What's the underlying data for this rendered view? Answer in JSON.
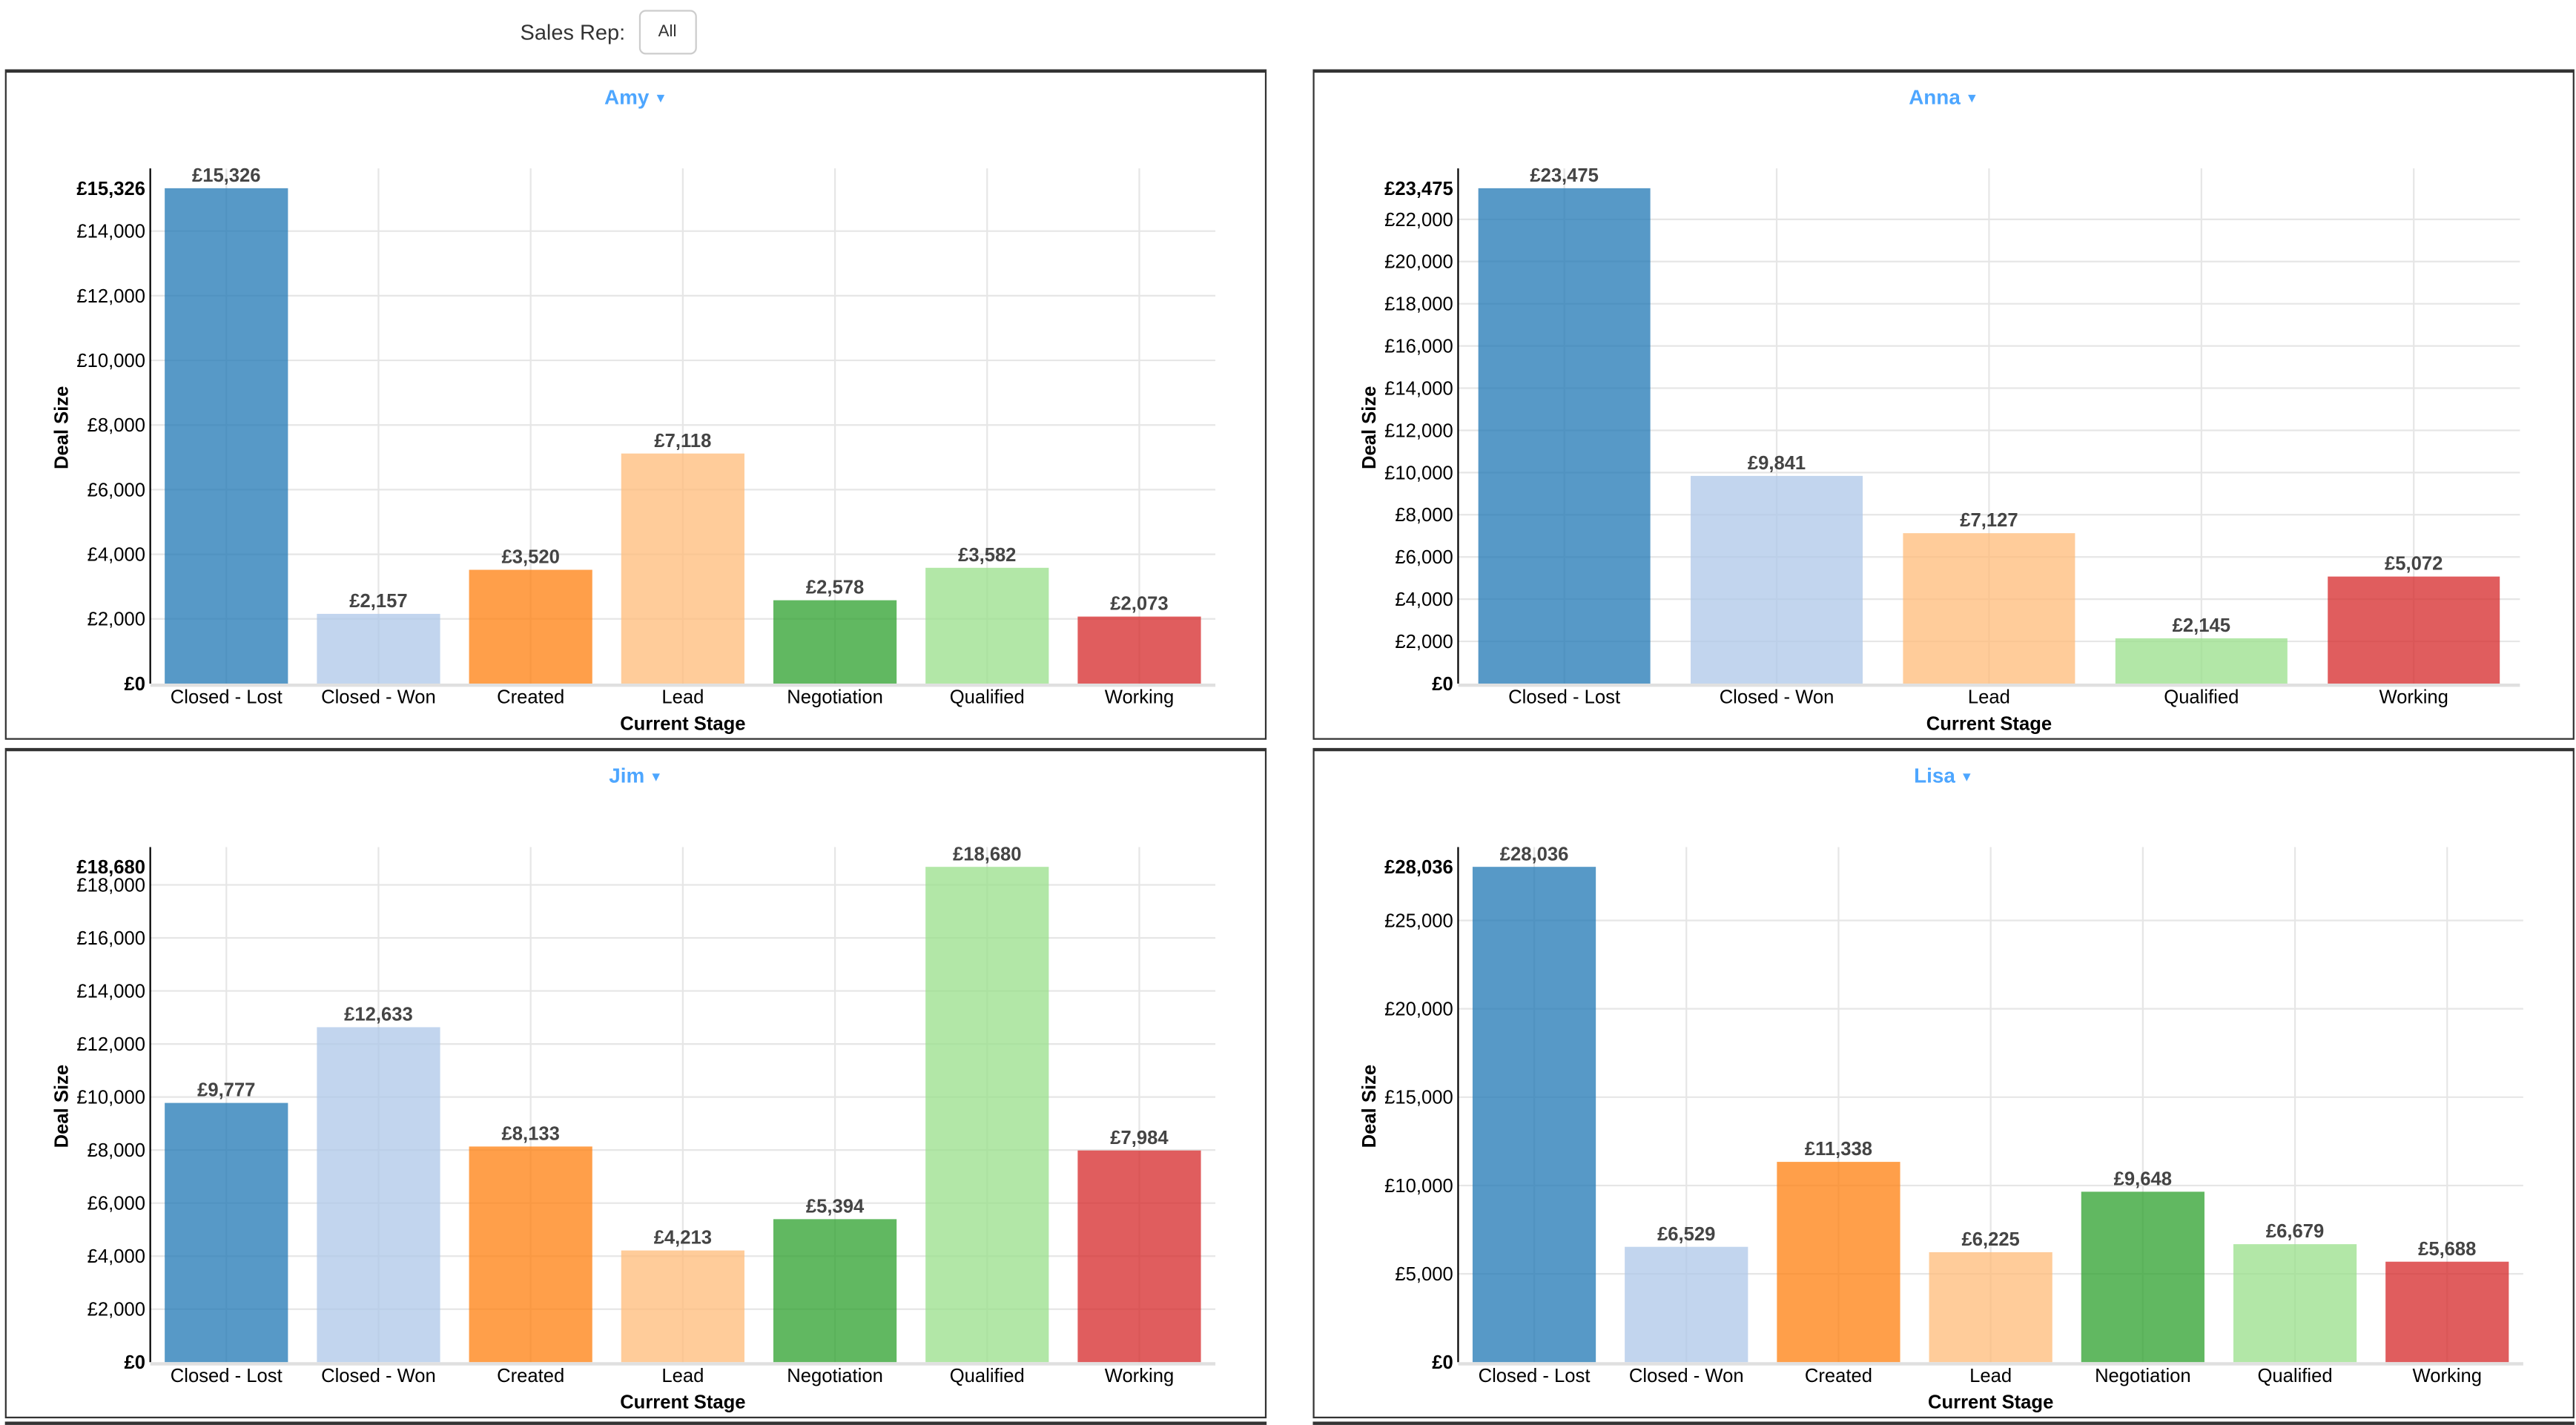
{
  "filter": {
    "label": "Sales Rep:",
    "value": "All"
  },
  "chart_data": [
    {
      "type": "bar",
      "title": "Amy",
      "xlabel": "Current Stage",
      "ylabel": "Deal Size",
      "currency": "£",
      "tick_step": 2000,
      "ylim": [
        0,
        15326
      ],
      "grid": true,
      "categories": [
        "Closed - Lost",
        "Closed - Won",
        "Created",
        "Lead",
        "Negotiation",
        "Qualified",
        "Working"
      ],
      "values": [
        15326,
        2157,
        3520,
        7118,
        2578,
        3582,
        2073
      ]
    },
    {
      "type": "bar",
      "title": "Anna",
      "xlabel": "Current Stage",
      "ylabel": "Deal Size",
      "currency": "£",
      "tick_step": 2000,
      "ylim": [
        0,
        23475
      ],
      "grid": true,
      "categories": [
        "Closed - Lost",
        "Closed - Won",
        "Lead",
        "Qualified",
        "Working"
      ],
      "values": [
        23475,
        9841,
        7127,
        2145,
        5072
      ]
    },
    {
      "type": "bar",
      "title": "Jim",
      "xlabel": "Current Stage",
      "ylabel": "Deal Size",
      "currency": "£",
      "tick_step": 2000,
      "ylim": [
        0,
        18680
      ],
      "grid": true,
      "categories": [
        "Closed - Lost",
        "Closed - Won",
        "Created",
        "Lead",
        "Negotiation",
        "Qualified",
        "Working"
      ],
      "values": [
        9777,
        12633,
        8133,
        4213,
        5394,
        18680,
        7984
      ]
    },
    {
      "type": "bar",
      "title": "Lisa",
      "xlabel": "Current Stage",
      "ylabel": "Deal Size",
      "currency": "£",
      "tick_step": 5000,
      "ylim": [
        0,
        28036
      ],
      "grid": true,
      "categories": [
        "Closed - Lost",
        "Closed - Won",
        "Created",
        "Lead",
        "Negotiation",
        "Qualified",
        "Working"
      ],
      "values": [
        28036,
        6529,
        11338,
        6225,
        9648,
        6679,
        5688
      ]
    }
  ],
  "stage_colors": {
    "Closed - Lost": "#1f77b4",
    "Closed - Won": "#aec7e8",
    "Created": "#ff7f0e",
    "Lead": "#ffbb78",
    "Negotiation": "#2ca02c",
    "Qualified": "#98df8a",
    "Working": "#d62728"
  },
  "title_color": "#4da6ff"
}
